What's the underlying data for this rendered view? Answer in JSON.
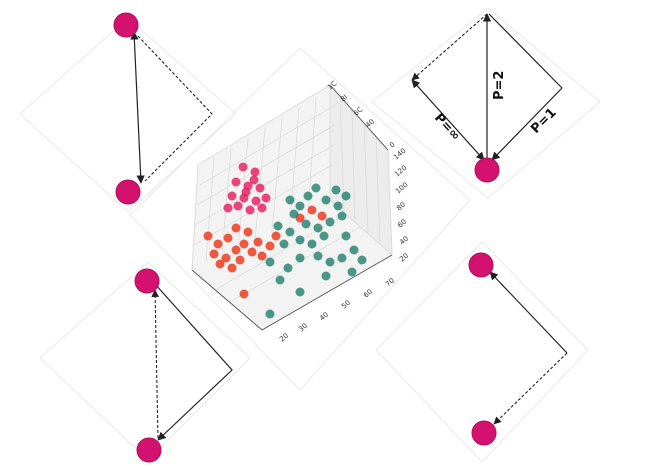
{
  "colors": {
    "node": "#d4116e",
    "node_stroke": "#b30d5c",
    "arrow": "#222222",
    "panel_border": "#e6e6e6",
    "cluster_pink": "#e8185f",
    "cluster_red": "#ef3b1f",
    "cluster_teal": "#1f7f6b"
  },
  "top_right_panel": {
    "label_p2": "P=2",
    "label_pinf": "P=∞",
    "label_p1": "P=1"
  },
  "plot3d": {
    "axis_a_ticks": [
      "20",
      "30",
      "40",
      "50",
      "60",
      "70"
    ],
    "axis_b_ticks": [
      "20",
      "40",
      "60",
      "80",
      "100",
      "120",
      "140"
    ],
    "axis_c_ticks": [
      "0",
      "40",
      "6C",
      "8I",
      "1C"
    ]
  }
}
